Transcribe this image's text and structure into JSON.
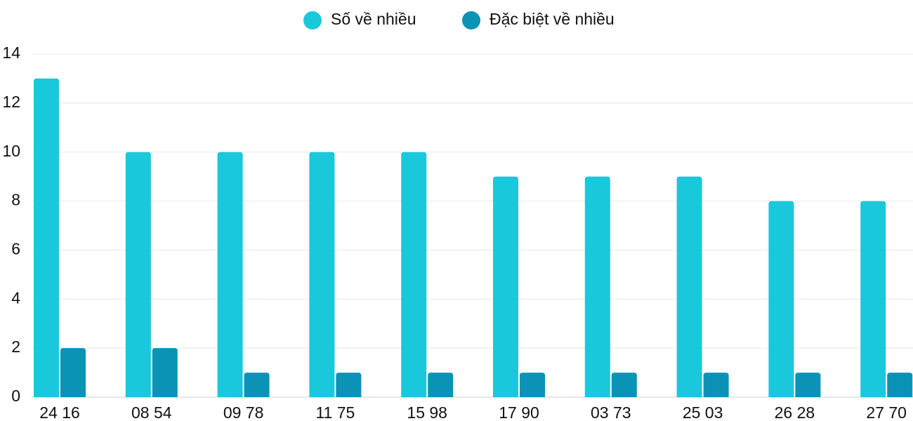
{
  "chart_data": {
    "type": "bar",
    "categories": [
      "24 16",
      "08 54",
      "09 78",
      "11 75",
      "15 98",
      "17 90",
      "03 73",
      "25 03",
      "26 28",
      "27 70"
    ],
    "series": [
      {
        "name": "Số về nhiều",
        "color": "#1ac8db",
        "values": [
          13,
          10,
          10,
          10,
          10,
          9,
          9,
          9,
          8,
          8
        ]
      },
      {
        "name": "Đặc biệt về nhiều",
        "color": "#0a93b5",
        "values": [
          2,
          2,
          1,
          1,
          1,
          1,
          1,
          1,
          1,
          1
        ]
      }
    ],
    "ylim": [
      0,
      14
    ],
    "yticks": [
      0,
      2,
      4,
      6,
      8,
      10,
      12,
      14
    ],
    "grid": true,
    "legend": "top"
  }
}
